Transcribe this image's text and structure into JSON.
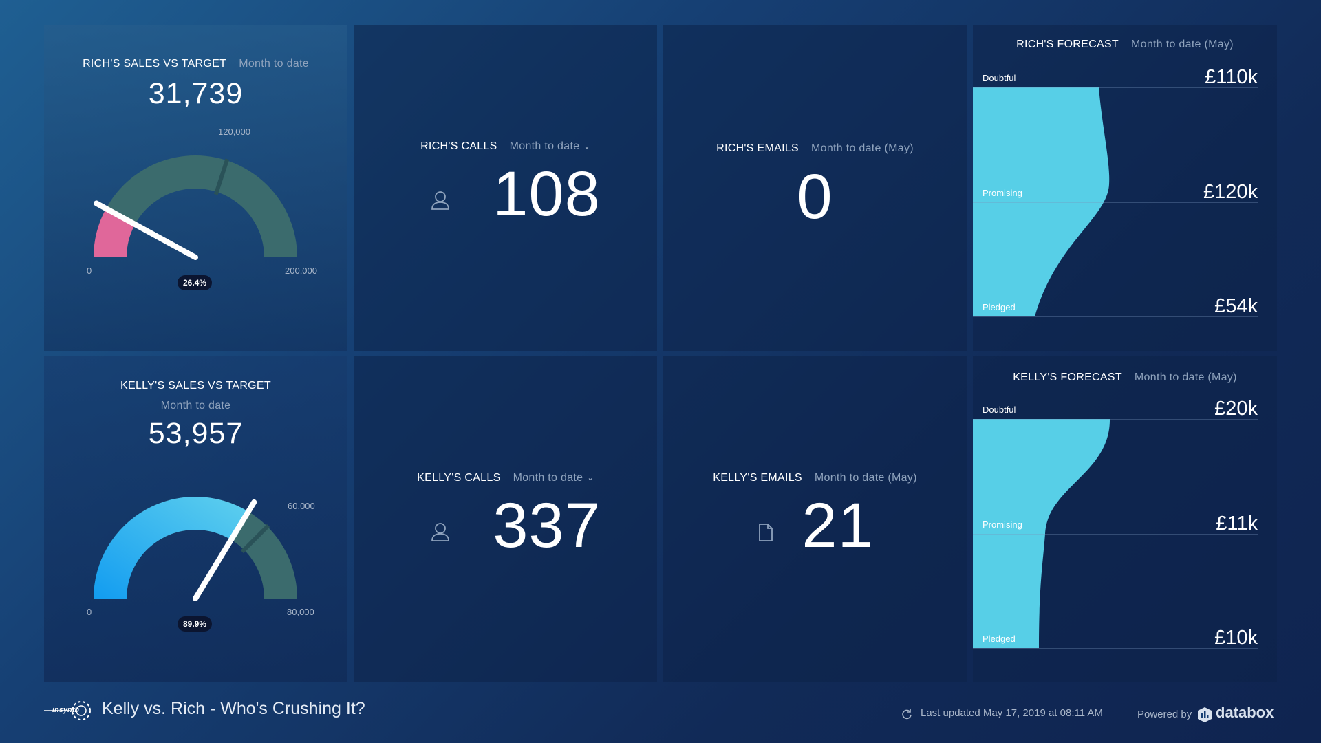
{
  "colors": {
    "gauge_track": "#3a6a6a",
    "gauge_rich_fill": "#e0679a",
    "gauge_kelly_fill": "#2ea9f0",
    "forecast_fill": "#57cfe7"
  },
  "rich_gauge": {
    "title": "RICH'S SALES VS TARGET",
    "subtitle": "Month to date",
    "value": "31,739",
    "min_label": "0",
    "target_label": "120,000",
    "max_label": "200,000",
    "percent_label": "26.4%",
    "value_fraction": 0.159,
    "target_fraction": 0.6
  },
  "kelly_gauge": {
    "title": "KELLY'S SALES VS TARGET",
    "subtitle": "Month to date",
    "value": "53,957",
    "min_label": "0",
    "target_label": "60,000",
    "max_label": "80,000",
    "percent_label": "89.9%",
    "value_fraction": 0.674,
    "target_fraction": 0.75
  },
  "rich_calls": {
    "title": "RICH'S CALLS",
    "subtitle": "Month to date",
    "value": "108",
    "icon": "user-icon"
  },
  "rich_emails": {
    "title": "RICH'S EMAILS",
    "subtitle": "Month to date (May)",
    "value": "0"
  },
  "kelly_calls": {
    "title": "KELLY'S CALLS",
    "subtitle": "Month to date",
    "value": "337",
    "icon": "user-icon"
  },
  "kelly_emails": {
    "title": "KELLY'S EMAILS",
    "subtitle": "Month to date (May)",
    "value": "21",
    "icon": "document-icon"
  },
  "rich_forecast": {
    "title": "RICH'S FORECAST",
    "subtitle": "Month to date (May)",
    "stages": [
      {
        "label": "Doubtful",
        "value": "£110k"
      },
      {
        "label": "Promising",
        "value": "£120k"
      },
      {
        "label": "Pledged",
        "value": "£54k"
      }
    ]
  },
  "kelly_forecast": {
    "title": "KELLY'S FORECAST",
    "subtitle": "Month to date (May)",
    "stages": [
      {
        "label": "Doubtful",
        "value": "£20k"
      },
      {
        "label": "Promising",
        "value": "£11k"
      },
      {
        "label": "Pledged",
        "value": "£10k"
      }
    ]
  },
  "footer": {
    "logo_text": "insynth",
    "title": "Kelly vs. Rich - Who's Crushing It?",
    "updated": "Last updated May 17, 2019 at 08:11 AM",
    "powered_by": "Powered by",
    "brand": "databox"
  }
}
